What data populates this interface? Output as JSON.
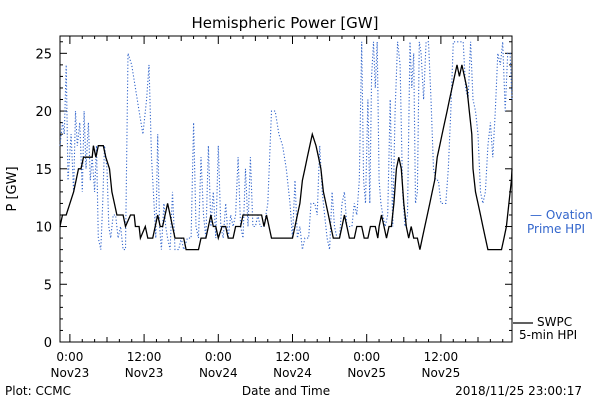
{
  "chart_data": {
    "type": "line",
    "title": "Hemispheric Power [GW]",
    "xlabel": "Date and Time",
    "ylabel": "P [GW]",
    "ylim": [
      0,
      26.5
    ],
    "yticks": [
      0,
      5,
      10,
      15,
      20,
      25
    ],
    "xlim_hours": [
      -1.6,
      71.5
    ],
    "xticks": [
      {
        "hour": 0,
        "line1": "0:00",
        "line2": "Nov23"
      },
      {
        "hour": 12,
        "line1": "12:00",
        "line2": "Nov23"
      },
      {
        "hour": 24,
        "line1": "0:00",
        "line2": "Nov24"
      },
      {
        "hour": 36,
        "line1": "12:00",
        "line2": "Nov24"
      },
      {
        "hour": 48,
        "line1": "0:00",
        "line2": "Nov25"
      },
      {
        "hour": 60,
        "line1": "12:00",
        "line2": "Nov25"
      }
    ],
    "footer_left": "Plot: CCMC",
    "footer_right": "2018/11/25 23:00:17",
    "series": [
      {
        "name_lines": [
          "SWPC",
          "5-min HPI"
        ],
        "color": "#000000",
        "style": "solid",
        "points": [
          [
            -1.6,
            10
          ],
          [
            -1.2,
            11
          ],
          [
            -0.6,
            11
          ],
          [
            0,
            12
          ],
          [
            0.6,
            13
          ],
          [
            1,
            14
          ],
          [
            1.4,
            15
          ],
          [
            1.8,
            15
          ],
          [
            2.2,
            16
          ],
          [
            3,
            16
          ],
          [
            3.6,
            16
          ],
          [
            3.8,
            17
          ],
          [
            4.2,
            16
          ],
          [
            4.6,
            17
          ],
          [
            5.4,
            17
          ],
          [
            5.8,
            16
          ],
          [
            6.4,
            15
          ],
          [
            6.8,
            13
          ],
          [
            7.2,
            12
          ],
          [
            7.6,
            11
          ],
          [
            8.6,
            11
          ],
          [
            9,
            10
          ],
          [
            9.8,
            11
          ],
          [
            10.4,
            11
          ],
          [
            10.6,
            10
          ],
          [
            11.2,
            10
          ],
          [
            11.4,
            9
          ],
          [
            12.2,
            10
          ],
          [
            12.6,
            9
          ],
          [
            13.4,
            9
          ],
          [
            13.8,
            10
          ],
          [
            14.2,
            11
          ],
          [
            14.6,
            10
          ],
          [
            15,
            10
          ],
          [
            15.4,
            11
          ],
          [
            15.8,
            12
          ],
          [
            16.2,
            11
          ],
          [
            16.6,
            10
          ],
          [
            17,
            9
          ],
          [
            18.4,
            9
          ],
          [
            18.8,
            8
          ],
          [
            20.8,
            8
          ],
          [
            21.2,
            9
          ],
          [
            22,
            9
          ],
          [
            22.4,
            10
          ],
          [
            22.8,
            11
          ],
          [
            23.2,
            10
          ],
          [
            23.6,
            10
          ],
          [
            24,
            9
          ],
          [
            24.6,
            10
          ],
          [
            25.2,
            10
          ],
          [
            25.6,
            9
          ],
          [
            26.4,
            9
          ],
          [
            26.8,
            10
          ],
          [
            27.6,
            10
          ],
          [
            28,
            11
          ],
          [
            31,
            11
          ],
          [
            31.4,
            10
          ],
          [
            31.8,
            11
          ],
          [
            32.2,
            10
          ],
          [
            32.6,
            9
          ],
          [
            36,
            9
          ],
          [
            36.4,
            10
          ],
          [
            36.8,
            11
          ],
          [
            37.2,
            12
          ],
          [
            37.6,
            14
          ],
          [
            38,
            15
          ],
          [
            38.4,
            16
          ],
          [
            38.8,
            17
          ],
          [
            39.2,
            18
          ],
          [
            39.8,
            17
          ],
          [
            40.2,
            16
          ],
          [
            40.6,
            15
          ],
          [
            41,
            13
          ],
          [
            41.4,
            12
          ],
          [
            41.8,
            11
          ],
          [
            42.2,
            10
          ],
          [
            42.6,
            9
          ],
          [
            43.6,
            9
          ],
          [
            44,
            10
          ],
          [
            44.4,
            11
          ],
          [
            44.8,
            10
          ],
          [
            45.2,
            9
          ],
          [
            46,
            9
          ],
          [
            46.4,
            10
          ],
          [
            47.2,
            10
          ],
          [
            47.6,
            9
          ],
          [
            48.2,
            9
          ],
          [
            48.6,
            10
          ],
          [
            49.4,
            10
          ],
          [
            49.8,
            9
          ],
          [
            50,
            10
          ],
          [
            50.4,
            11
          ],
          [
            50.8,
            10
          ],
          [
            51.2,
            9
          ],
          [
            51.6,
            10
          ],
          [
            52,
            10
          ],
          [
            52.4,
            12
          ],
          [
            52.8,
            15
          ],
          [
            53.2,
            16
          ],
          [
            53.6,
            15
          ],
          [
            54,
            12
          ],
          [
            54.4,
            10
          ],
          [
            54.8,
            9
          ],
          [
            55.2,
            10
          ],
          [
            55.6,
            9
          ],
          [
            56.2,
            9
          ],
          [
            56.6,
            8
          ],
          [
            57,
            9
          ],
          [
            57.4,
            10
          ],
          [
            57.8,
            11
          ],
          [
            58.2,
            12
          ],
          [
            58.6,
            13
          ],
          [
            59,
            14
          ],
          [
            59.4,
            16
          ],
          [
            59.8,
            17
          ],
          [
            60.2,
            18
          ],
          [
            60.6,
            19
          ],
          [
            61,
            20
          ],
          [
            61.4,
            21
          ],
          [
            61.8,
            22
          ],
          [
            62.2,
            23
          ],
          [
            62.6,
            24
          ],
          [
            63,
            23
          ],
          [
            63.4,
            24
          ],
          [
            63.8,
            23
          ],
          [
            64.2,
            22
          ],
          [
            64.6,
            20
          ],
          [
            65,
            18
          ],
          [
            65.2,
            15
          ],
          [
            65.6,
            13
          ],
          [
            66,
            12
          ],
          [
            66.4,
            11
          ],
          [
            66.8,
            10
          ],
          [
            67.2,
            9
          ],
          [
            67.6,
            8
          ],
          [
            69.8,
            8
          ],
          [
            70.2,
            9
          ],
          [
            70.6,
            10
          ],
          [
            71,
            12
          ],
          [
            71.4,
            14
          ],
          [
            71.5,
            15
          ]
        ]
      },
      {
        "name_lines": [
          "— Ovation",
          "Prime HPI"
        ],
        "color": "#3366cc",
        "style": "dotted",
        "points": [
          [
            -1.6,
            17
          ],
          [
            -1.2,
            19
          ],
          [
            -0.9,
            18
          ],
          [
            -0.6,
            24
          ],
          [
            -0.3,
            14
          ],
          [
            0.2,
            18
          ],
          [
            0.6,
            13
          ],
          [
            0.9,
            20
          ],
          [
            1.2,
            17
          ],
          [
            1.6,
            19
          ],
          [
            2,
            13
          ],
          [
            2.3,
            20
          ],
          [
            2.6,
            15
          ],
          [
            3,
            19
          ],
          [
            3.3,
            14
          ],
          [
            3.6,
            16
          ],
          [
            4,
            13
          ],
          [
            4.3,
            17
          ],
          [
            4.6,
            9
          ],
          [
            5,
            8
          ],
          [
            5.3,
            12
          ],
          [
            5.6,
            17
          ],
          [
            6,
            15
          ],
          [
            6.3,
            10
          ],
          [
            6.6,
            9
          ],
          [
            7,
            11
          ],
          [
            7.4,
            11
          ],
          [
            7.8,
            9
          ],
          [
            8.2,
            10
          ],
          [
            8.6,
            8
          ],
          [
            9,
            8
          ],
          [
            9.4,
            25
          ],
          [
            10,
            24
          ],
          [
            10.6,
            22
          ],
          [
            11.2,
            20
          ],
          [
            11.8,
            18
          ],
          [
            12.4,
            21
          ],
          [
            12.8,
            24
          ],
          [
            13.2,
            16
          ],
          [
            13.6,
            12
          ],
          [
            13.9,
            9
          ],
          [
            14.2,
            18
          ],
          [
            14.5,
            10
          ],
          [
            14.8,
            8
          ],
          [
            15.2,
            12
          ],
          [
            15.5,
            10
          ],
          [
            15.8,
            9
          ],
          [
            16.2,
            8
          ],
          [
            16.6,
            13
          ],
          [
            17,
            8
          ],
          [
            17.6,
            8
          ],
          [
            18,
            9
          ],
          [
            18.4,
            8
          ],
          [
            19,
            9
          ],
          [
            19.6,
            9
          ],
          [
            20,
            19
          ],
          [
            20.4,
            10
          ],
          [
            20.8,
            9
          ],
          [
            21.2,
            16
          ],
          [
            21.6,
            11
          ],
          [
            22,
            9
          ],
          [
            22.4,
            17
          ],
          [
            22.8,
            10
          ],
          [
            23.2,
            13
          ],
          [
            23.6,
            9
          ],
          [
            24,
            17
          ],
          [
            24.4,
            10
          ],
          [
            24.8,
            9
          ],
          [
            25.2,
            12
          ],
          [
            25.6,
            9
          ],
          [
            26,
            11
          ],
          [
            26.4,
            10
          ],
          [
            26.8,
            11
          ],
          [
            27.2,
            16
          ],
          [
            27.6,
            10
          ],
          [
            28,
            9
          ],
          [
            28.4,
            15
          ],
          [
            28.8,
            10
          ],
          [
            29.2,
            16
          ],
          [
            29.6,
            10
          ],
          [
            30,
            10
          ],
          [
            30.4,
            11
          ],
          [
            30.8,
            10
          ],
          [
            31.4,
            10
          ],
          [
            32,
            12
          ],
          [
            32.6,
            20
          ],
          [
            33.2,
            20
          ],
          [
            33.8,
            18
          ],
          [
            34.4,
            17
          ],
          [
            35,
            15
          ],
          [
            35.6,
            12
          ],
          [
            36,
            9
          ],
          [
            36.4,
            14
          ],
          [
            36.8,
            9
          ],
          [
            37.2,
            10
          ],
          [
            37.6,
            8
          ],
          [
            38,
            9
          ],
          [
            38.6,
            9
          ],
          [
            39,
            12
          ],
          [
            39.6,
            12
          ],
          [
            40,
            11
          ],
          [
            40.4,
            17
          ],
          [
            40.8,
            13
          ],
          [
            41.2,
            11
          ],
          [
            41.6,
            9
          ],
          [
            42,
            8
          ],
          [
            42.4,
            13
          ],
          [
            42.8,
            10
          ],
          [
            43.2,
            9
          ],
          [
            43.6,
            9
          ],
          [
            44,
            12
          ],
          [
            44.4,
            13
          ],
          [
            44.8,
            10
          ],
          [
            45.2,
            10
          ],
          [
            45.6,
            10
          ],
          [
            46,
            12
          ],
          [
            46.4,
            11
          ],
          [
            46.8,
            14
          ],
          [
            47.2,
            26
          ],
          [
            47.5,
            14
          ],
          [
            47.8,
            12
          ],
          [
            48.2,
            21
          ],
          [
            48.5,
            12
          ],
          [
            48.8,
            23
          ],
          [
            49.1,
            26
          ],
          [
            49.4,
            22
          ],
          [
            49.7,
            26
          ],
          [
            50,
            14
          ],
          [
            50.3,
            12
          ],
          [
            50.6,
            11
          ],
          [
            51,
            10
          ],
          [
            51.4,
            11
          ],
          [
            51.8,
            21
          ],
          [
            52.2,
            10
          ],
          [
            52.6,
            20
          ],
          [
            53,
            26
          ],
          [
            53.4,
            24
          ],
          [
            53.8,
            13
          ],
          [
            54.2,
            10
          ],
          [
            54.6,
            11
          ],
          [
            55,
            26
          ],
          [
            55.3,
            22
          ],
          [
            55.6,
            25
          ],
          [
            55.9,
            12
          ],
          [
            56.2,
            13
          ],
          [
            56.5,
            26
          ],
          [
            56.8,
            25
          ],
          [
            57.2,
            21
          ],
          [
            57.6,
            26
          ],
          [
            58,
            26
          ],
          [
            58.4,
            21
          ],
          [
            58.8,
            15
          ],
          [
            59.2,
            14
          ],
          [
            59.6,
            14
          ],
          [
            60,
            12
          ],
          [
            60.4,
            12
          ],
          [
            60.8,
            12
          ],
          [
            61.2,
            15
          ],
          [
            61.6,
            20
          ],
          [
            62,
            26
          ],
          [
            62.4,
            26
          ],
          [
            62.8,
            26
          ],
          [
            63.2,
            26
          ],
          [
            63.6,
            26
          ],
          [
            64,
            22
          ],
          [
            64.4,
            21
          ],
          [
            64.8,
            26
          ],
          [
            65.2,
            21
          ],
          [
            65.6,
            20
          ],
          [
            66,
            18
          ],
          [
            66.4,
            13
          ],
          [
            66.8,
            12
          ],
          [
            67.2,
            13
          ],
          [
            67.6,
            17
          ],
          [
            68,
            19
          ],
          [
            68.4,
            16
          ],
          [
            68.8,
            20
          ],
          [
            69.2,
            25
          ],
          [
            69.6,
            24
          ],
          [
            70,
            26
          ],
          [
            70.4,
            20
          ],
          [
            70.8,
            25
          ],
          [
            71.2,
            25
          ],
          [
            71.5,
            21
          ]
        ]
      }
    ]
  }
}
